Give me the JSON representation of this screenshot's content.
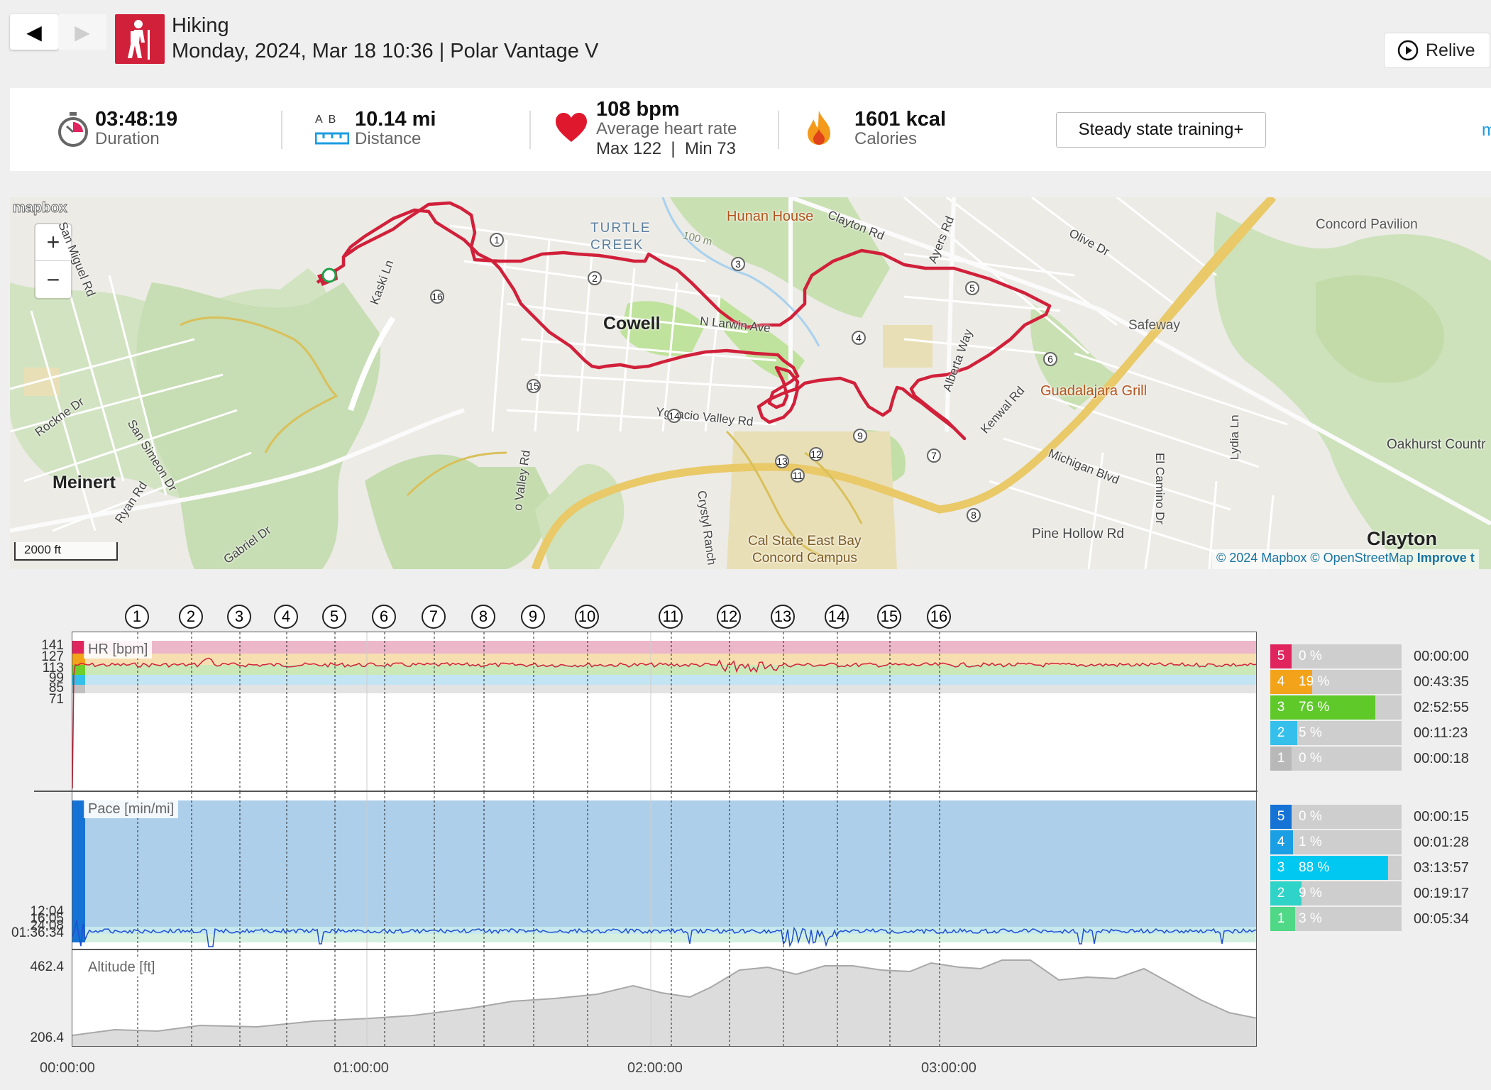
{
  "header": {
    "back_icon": "◀",
    "forward_icon": "▶",
    "sport": "Hiking",
    "session_line": "Monday, 2024, Mar 18 10:36 | Polar Vantage V",
    "relive_label": "Relive"
  },
  "summary": {
    "duration_value": "03:48:19",
    "duration_label": "Duration",
    "distance_ab": "A  B",
    "distance_value": "10.14 mi",
    "distance_label": "Distance",
    "hr_value": "108 bpm",
    "hr_label": "Average heart rate",
    "hr_maxmin": "Max 122  |  Min 73",
    "calories_value": "1601 kcal",
    "calories_label": "Calories",
    "training_benefit": "Steady state training+",
    "more_link": "mo"
  },
  "map": {
    "logo": "mapbox",
    "zoom_in": "+",
    "zoom_out": "−",
    "scale": "2000 ft",
    "attribution_prefix": "© 2024 Mapbox © ",
    "attribution_osm": "OpenStreetMap",
    "attribution_improve": "Improve t",
    "labels": {
      "turtle_creek": "TURTLE CREEK",
      "cowell": "Cowell",
      "meinert": "Meinert",
      "clayton": "Clayton",
      "hunan_house": "Hunan House",
      "guadalajara": "Guadalajara Grill",
      "safeway": "Safeway",
      "concord_pavilion": "Concord Pavilion",
      "oakhurst": "Oakhurst Countr",
      "cal_state": "Cal State East Bay",
      "concord_campus": "Concord Campus",
      "clayton_rd": "Clayton Rd",
      "olive_dr": "Olive Dr",
      "ayers_rd": "Ayers Rd",
      "n_larwin": "N Larwin Ave",
      "alberta_way": "Alberta Way",
      "kenwal_rd": "Kenwal Rd",
      "michigan_blvd": "Michigan Blvd",
      "el_camino": "El Camino Dr",
      "lydia_ln": "Lydia Ln",
      "pine_hollow": "Pine Hollow Rd",
      "crystyl_ranch": "Crystyl Ranch",
      "ygnacio": "Ygnacio Valley Rd",
      "valley_rd": "o Valley Rd",
      "kaski_ln": "Kaski Ln",
      "rockne_dr": "Rockne Dr",
      "san_simeon": "San Simeon Dr",
      "ryan_rd": "Ryan Rd",
      "gabriel_dr": "Gabriel Dr",
      "san_miguel": "San Miguel Rd",
      "contour_100": "100 m"
    },
    "lap_markers": [
      "1",
      "2",
      "3",
      "4",
      "5",
      "6",
      "7",
      "8",
      "9",
      "11",
      "12",
      "13",
      "14",
      "15",
      "16"
    ]
  },
  "laps": [
    "1",
    "2",
    "3",
    "4",
    "5",
    "6",
    "7",
    "8",
    "9",
    "10",
    "11",
    "12",
    "13",
    "14",
    "15",
    "16"
  ],
  "charts": {
    "hr": {
      "title": "HR [bpm]",
      "yticks": [
        "141",
        "127",
        "113",
        "99",
        "85",
        "71"
      ],
      "zone_colors": [
        "#e0245e",
        "#f3a31a",
        "#6fcf2a",
        "#34c0ea",
        "#c0c0c0"
      ],
      "zones": [
        {
          "zone": "5",
          "pct": "0 %",
          "time": "00:00:00",
          "fraction": 0.0,
          "color": "#e0245e"
        },
        {
          "zone": "4",
          "pct": "19 %",
          "time": "00:43:35",
          "fraction": 0.19,
          "color": "#f3a31a"
        },
        {
          "zone": "3",
          "pct": "76 %",
          "time": "02:52:55",
          "fraction": 0.76,
          "color": "#5fc92a"
        },
        {
          "zone": "2",
          "pct": "5 %",
          "time": "00:11:23",
          "fraction": 0.05,
          "color": "#34c0ea"
        },
        {
          "zone": "1",
          "pct": "0 %",
          "time": "00:00:18",
          "fraction": 0.0,
          "color": "#b8b8b8"
        }
      ]
    },
    "pace": {
      "title": "Pace [min/mi]",
      "yticks": [
        "12:04",
        "16:05",
        "24:08",
        "01:36:34"
      ],
      "zones": [
        {
          "zone": "5",
          "pct": "0 %",
          "time": "00:00:15",
          "fraction": 0.0,
          "color": "#1573d6"
        },
        {
          "zone": "4",
          "pct": "1 %",
          "time": "00:01:28",
          "fraction": 0.01,
          "color": "#1a9ee4"
        },
        {
          "zone": "3",
          "pct": "88 %",
          "time": "03:13:57",
          "fraction": 0.88,
          "color": "#00c8f0"
        },
        {
          "zone": "2",
          "pct": "9 %",
          "time": "00:19:17",
          "fraction": 0.09,
          "color": "#2fd3c8"
        },
        {
          "zone": "1",
          "pct": "3 %",
          "time": "00:05:34",
          "fraction": 0.03,
          "color": "#4fd886"
        }
      ]
    },
    "altitude": {
      "title": "Altitude [ft]",
      "ymax": "462.4",
      "ymin": "206.4"
    },
    "xticks": [
      "00:00:00",
      "01:00:00",
      "02:00:00",
      "03:00:00"
    ]
  }
}
